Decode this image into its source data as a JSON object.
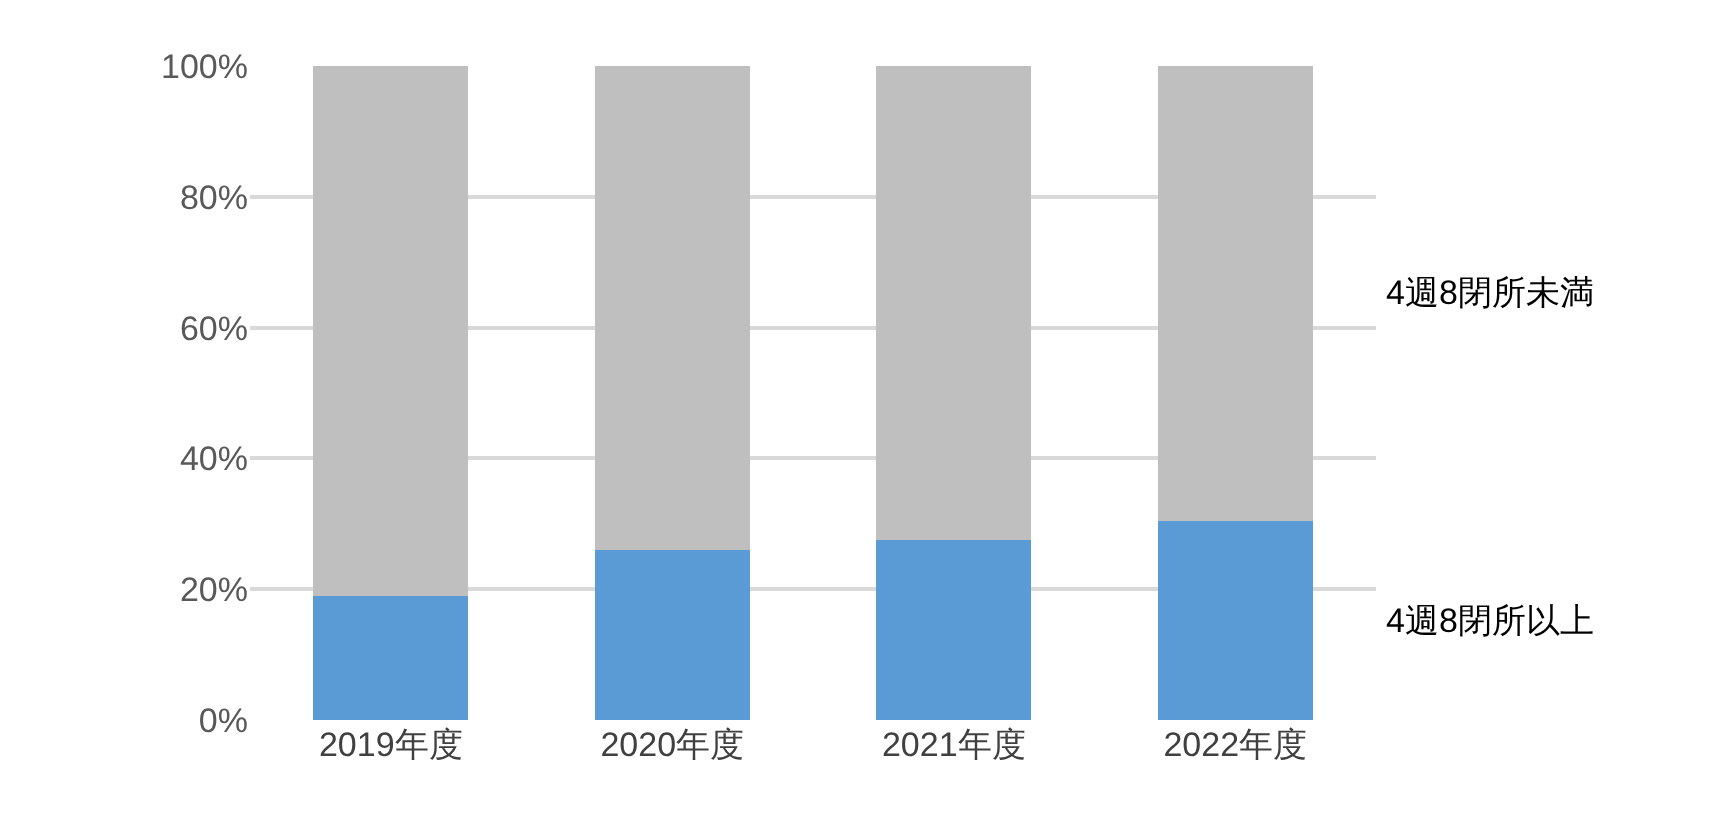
{
  "chart_data": {
    "type": "bar",
    "stacked": true,
    "categories": [
      "2019年度",
      "2020年度",
      "2021年度",
      "2022年度"
    ],
    "series": [
      {
        "name": "4週8閉所以上",
        "color": "#5b9bd5",
        "values": [
          19,
          26,
          27.5,
          30.5
        ]
      },
      {
        "name": "4週8閉所未満",
        "color": "#bfbfbf",
        "values": [
          81,
          74,
          72.5,
          69.5
        ]
      }
    ],
    "ylim": [
      0,
      100
    ],
    "yticks": [
      {
        "value": 0,
        "label": "0%"
      },
      {
        "value": 20,
        "label": "20%"
      },
      {
        "value": 40,
        "label": "40%"
      },
      {
        "value": 60,
        "label": "60%"
      },
      {
        "value": 80,
        "label": "80%"
      },
      {
        "value": 100,
        "label": "100%"
      }
    ],
    "grid": "y",
    "legend": false
  }
}
